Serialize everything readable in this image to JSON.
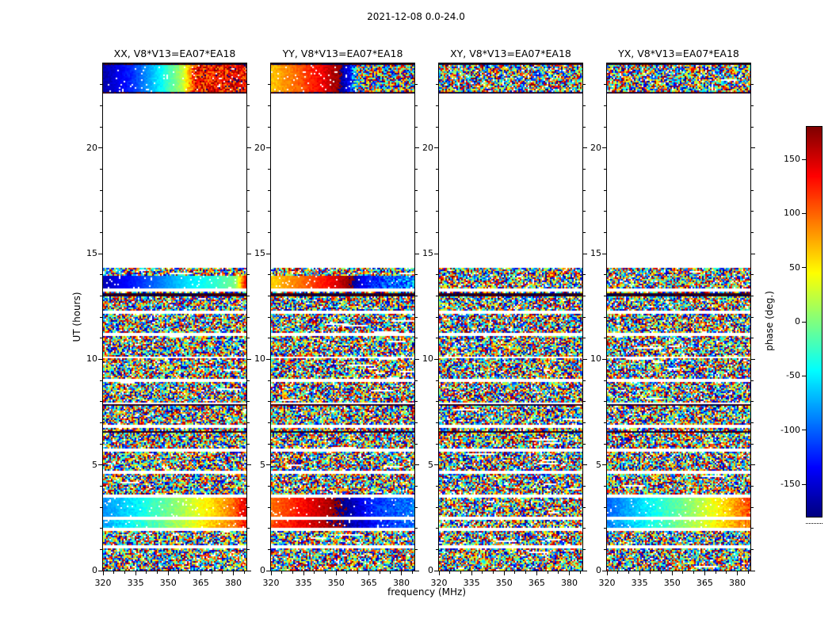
{
  "chart_data": {
    "type": "heatmap",
    "title": "2021-12-08 0.0-24.0",
    "xlabel": "frequency (MHz)",
    "ylabel": "UT (hours)",
    "x_axis": {
      "min": 320,
      "max": 386,
      "ticks": [
        320,
        335,
        350,
        365,
        380
      ],
      "minor_step": 5
    },
    "y_axis": {
      "min": 0,
      "max": 24,
      "ticks": [
        0,
        5,
        10,
        15,
        20
      ],
      "minor_step": 1
    },
    "colorbar": {
      "label": "phase (deg.)",
      "min": -180,
      "max": 180,
      "ticks": [
        150,
        100,
        50,
        0,
        -50,
        -100,
        -150
      ],
      "colormap": "jet"
    },
    "seed": 7,
    "noise_white_fraction": 0.07,
    "time_coverage": {
      "blocks": [
        [
          0,
          14.35
        ],
        [
          22.55,
          24
        ]
      ],
      "gap_times": [
        1.12,
        1.95,
        2.5,
        3.55,
        4.65,
        5.72,
        6.8,
        7.92,
        9.0,
        10.08,
        11.15,
        12.22,
        13.27
      ],
      "gap_width": 0.13,
      "dark_times": [
        23.96,
        22.59,
        13.05,
        7.82,
        6.55
      ],
      "dark_width": 0.1
    },
    "panels": [
      {
        "id": "XX",
        "label": "XX, V8*V13=EA07*EA18",
        "features": [
          {
            "t0": 22.62,
            "t1": 23.92,
            "stops": [
              [
                0,
                -165,
                8
              ],
              [
                0.2,
                -120,
                8
              ],
              [
                0.4,
                -45,
                8
              ],
              [
                0.55,
                20,
                10
              ],
              [
                0.6,
                80,
                25
              ],
              [
                0.64,
                130,
                50
              ],
              [
                1,
                135,
                55
              ]
            ]
          },
          {
            "t0": 13.35,
            "t1": 13.95,
            "stops": [
              [
                0,
                -160,
                6
              ],
              [
                0.3,
                -110,
                6
              ],
              [
                0.55,
                -60,
                6
              ],
              [
                0.8,
                -25,
                7
              ],
              [
                0.92,
                0,
                8
              ],
              [
                0.96,
                80,
                20
              ],
              [
                1,
                150,
                20
              ]
            ]
          },
          {
            "t0": 2.56,
            "t1": 3.49,
            "stops": [
              [
                0,
                -85,
                10
              ],
              [
                0.25,
                -45,
                10
              ],
              [
                0.5,
                5,
                10
              ],
              [
                0.75,
                55,
                12
              ],
              [
                0.9,
                95,
                15
              ],
              [
                1,
                150,
                25
              ]
            ]
          },
          {
            "t0": 2.05,
            "t1": 2.44,
            "stops": [
              [
                0,
                -75,
                14
              ],
              [
                0.3,
                -25,
                14
              ],
              [
                0.6,
                30,
                14
              ],
              [
                0.85,
                80,
                16
              ],
              [
                1,
                130,
                25
              ]
            ]
          }
        ]
      },
      {
        "id": "YY",
        "label": "YY, V8*V13=EA07*EA18",
        "features": [
          {
            "t0": 22.62,
            "t1": 23.92,
            "stops": [
              [
                0,
                65,
                10
              ],
              [
                0.18,
                100,
                10
              ],
              [
                0.35,
                140,
                10
              ],
              [
                0.47,
                175,
                12
              ],
              [
                0.54,
                -135,
                18
              ],
              [
                0.6,
                -40,
                160
              ],
              [
                1,
                0,
                180
              ]
            ]
          },
          {
            "t0": 13.35,
            "t1": 13.95,
            "stops": [
              [
                0,
                60,
                8
              ],
              [
                0.2,
                95,
                8
              ],
              [
                0.4,
                135,
                8
              ],
              [
                0.55,
                175,
                10
              ],
              [
                0.63,
                -140,
                14
              ],
              [
                0.78,
                -105,
                35
              ],
              [
                1,
                -80,
                60
              ]
            ]
          },
          {
            "t0": 2.56,
            "t1": 3.49,
            "stops": [
              [
                0,
                95,
                10
              ],
              [
                0.2,
                130,
                10
              ],
              [
                0.42,
                170,
                12
              ],
              [
                0.55,
                -165,
                12
              ],
              [
                0.7,
                -120,
                15
              ],
              [
                1,
                -90,
                25
              ]
            ]
          },
          {
            "t0": 2.05,
            "t1": 2.44,
            "stops": [
              [
                0,
                110,
                14
              ],
              [
                0.3,
                155,
                14
              ],
              [
                0.5,
                -175,
                16
              ],
              [
                0.75,
                -125,
                18
              ],
              [
                1,
                -95,
                25
              ]
            ]
          }
        ]
      },
      {
        "id": "XY",
        "label": "XY, V8*V13=EA07*EA18",
        "features": []
      },
      {
        "id": "YX",
        "label": "YX, V8*V13=EA07*EA18",
        "features": [
          {
            "t0": 2.56,
            "t1": 3.49,
            "stops": [
              [
                0,
                -100,
                12
              ],
              [
                0.3,
                -45,
                12
              ],
              [
                0.6,
                10,
                12
              ],
              [
                0.85,
                65,
                15
              ],
              [
                1,
                115,
                22
              ]
            ]
          },
          {
            "t0": 2.05,
            "t1": 2.44,
            "stops": [
              [
                0,
                -90,
                15
              ],
              [
                0.35,
                -30,
                15
              ],
              [
                0.7,
                35,
                16
              ],
              [
                1,
                95,
                22
              ]
            ]
          }
        ]
      }
    ]
  }
}
